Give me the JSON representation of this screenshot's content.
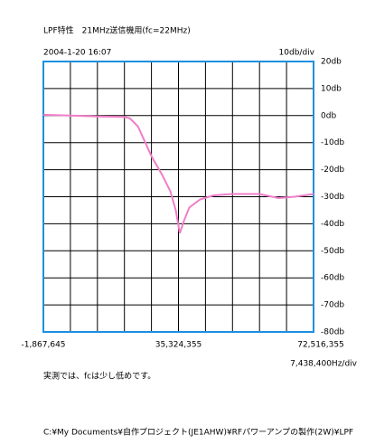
{
  "chart_data": {
    "type": "line",
    "title": "LPF特性　21MHz送信機用(fc=22MHz)",
    "timestamp": "2004-1-20 16:07",
    "note": "実測では、fcは少し低めです。",
    "file_path": "C:¥My Documents¥自作プロジェクト(JE1AHW)¥RFパワーアンプの製作(2W)¥LPF",
    "x_per_div": {
      "value": 7438400,
      "label": "7,438,400Hz/div"
    },
    "y_per_div": {
      "value": 10,
      "label": "10db/div"
    },
    "xlim": [
      -1867645,
      72516355
    ],
    "xticks": [
      {
        "value": -1867645,
        "label": "-1,867,645"
      },
      {
        "value": 35324355,
        "label": "35,324,355"
      },
      {
        "value": 72516355,
        "label": "72,516,355"
      }
    ],
    "ylim": [
      -80,
      20
    ],
    "yticks": [
      {
        "value": 20,
        "label": "20db"
      },
      {
        "value": 10,
        "label": "10db"
      },
      {
        "value": 0,
        "label": "0db"
      },
      {
        "value": -10,
        "label": "-10db"
      },
      {
        "value": -20,
        "label": "-20db"
      },
      {
        "value": -30,
        "label": "-30db"
      },
      {
        "value": -40,
        "label": "-40db"
      },
      {
        "value": -50,
        "label": "-50db"
      },
      {
        "value": -60,
        "label": "-60db"
      },
      {
        "value": -70,
        "label": "-70db"
      },
      {
        "value": -80,
        "label": "-80db"
      }
    ],
    "grid": true,
    "frame_color": "#1e8fe0",
    "series": [
      {
        "color": "#f07ec8",
        "x": [
          -1867645,
          5570755,
          13009155,
          20447555,
          21935235,
          24166755,
          27885955,
          30861315,
          33092835,
          34580515,
          35696275,
          36812035,
          38299715,
          41275075,
          44994275,
          50201155,
          57639555,
          62846435,
          67309475,
          72516355
        ],
        "values": [
          0.3,
          0,
          -0.3,
          -0.5,
          -1,
          -4,
          -15,
          -22,
          -28,
          -35,
          -43.5,
          -39,
          -34,
          -31,
          -29.5,
          -29,
          -29,
          -30.5,
          -30,
          -29
        ]
      }
    ]
  }
}
